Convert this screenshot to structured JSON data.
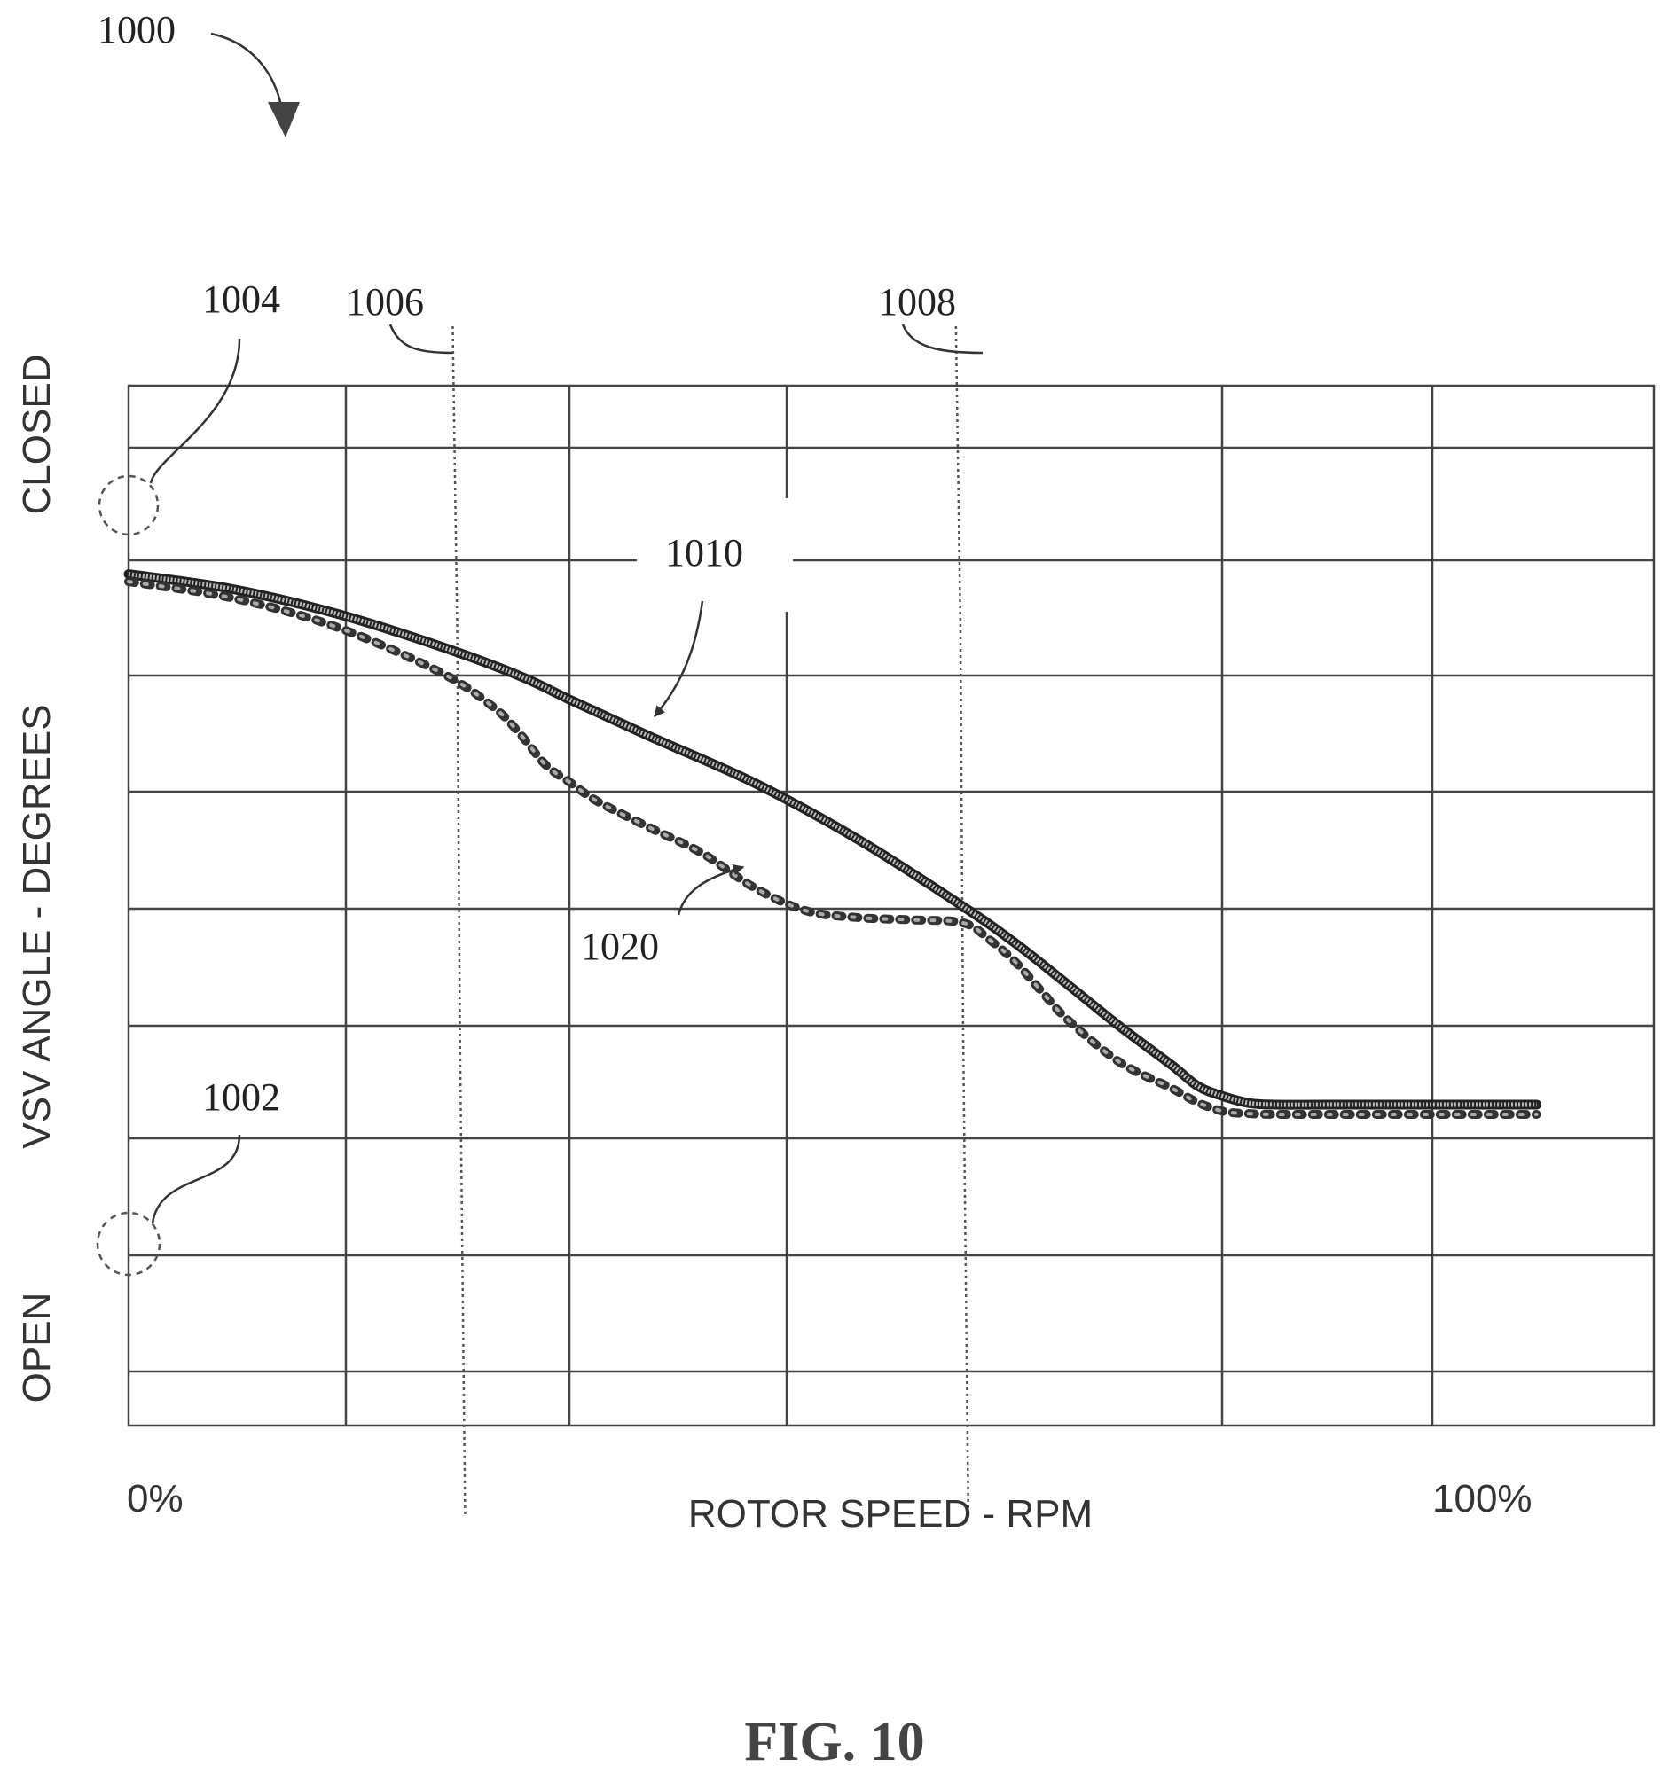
{
  "figure": {
    "title": "FIG. 10",
    "ref_figure": "1000",
    "ref_open_point": "1002",
    "ref_closed_point": "1004",
    "ref_first_speed": "1006",
    "ref_second_speed": "1008",
    "ref_curve_solid": "1010",
    "ref_curve_dotted": "1020"
  },
  "chart_data": {
    "type": "line",
    "xlabel": "ROTOR SPEED - RPM",
    "ylabel": "VSV ANGLE - DEGREES",
    "x_tick_labels": [
      "0%",
      "100%"
    ],
    "y_tick_labels": [
      "OPEN",
      "CLOSED"
    ],
    "x_range": [
      0,
      100
    ],
    "y_range": [
      0,
      100
    ],
    "grid": true,
    "markers": [
      {
        "label": "1006",
        "x": 25.2
      },
      {
        "label": "1008",
        "x": 63.8
      }
    ],
    "series": [
      {
        "name": "1010",
        "style": "solid",
        "x": [
          0,
          8,
          16,
          24,
          30,
          34,
          40,
          48,
          56,
          64,
          68,
          72,
          76,
          80,
          82,
          84,
          86,
          88,
          92,
          100,
          108
        ],
        "y": [
          89.5,
          87.5,
          84.2,
          79.8,
          75.9,
          72.6,
          67.8,
          61.6,
          54.0,
          45.1,
          40.2,
          34.7,
          29.1,
          23.9,
          21.1,
          19.7,
          18.8,
          18.6,
          18.6,
          18.6,
          18.6
        ]
      },
      {
        "name": "1020",
        "style": "dotted",
        "x": [
          0,
          8,
          16,
          24,
          28,
          30,
          32,
          34,
          36,
          40,
          44,
          48,
          52,
          56,
          60,
          64,
          66,
          68,
          70,
          72,
          76,
          80,
          82,
          84,
          86,
          88,
          92,
          100,
          108
        ],
        "y": [
          88.5,
          86.3,
          82.4,
          76.3,
          71.7,
          68.2,
          64.0,
          61.5,
          59.1,
          55.6,
          52.2,
          47.6,
          44.5,
          43.6,
          43.3,
          42.9,
          40.7,
          37.7,
          33.8,
          30.0,
          24.3,
          20.8,
          18.9,
          17.7,
          17.4,
          17.3,
          17.3,
          17.3,
          17.3
        ]
      }
    ]
  }
}
